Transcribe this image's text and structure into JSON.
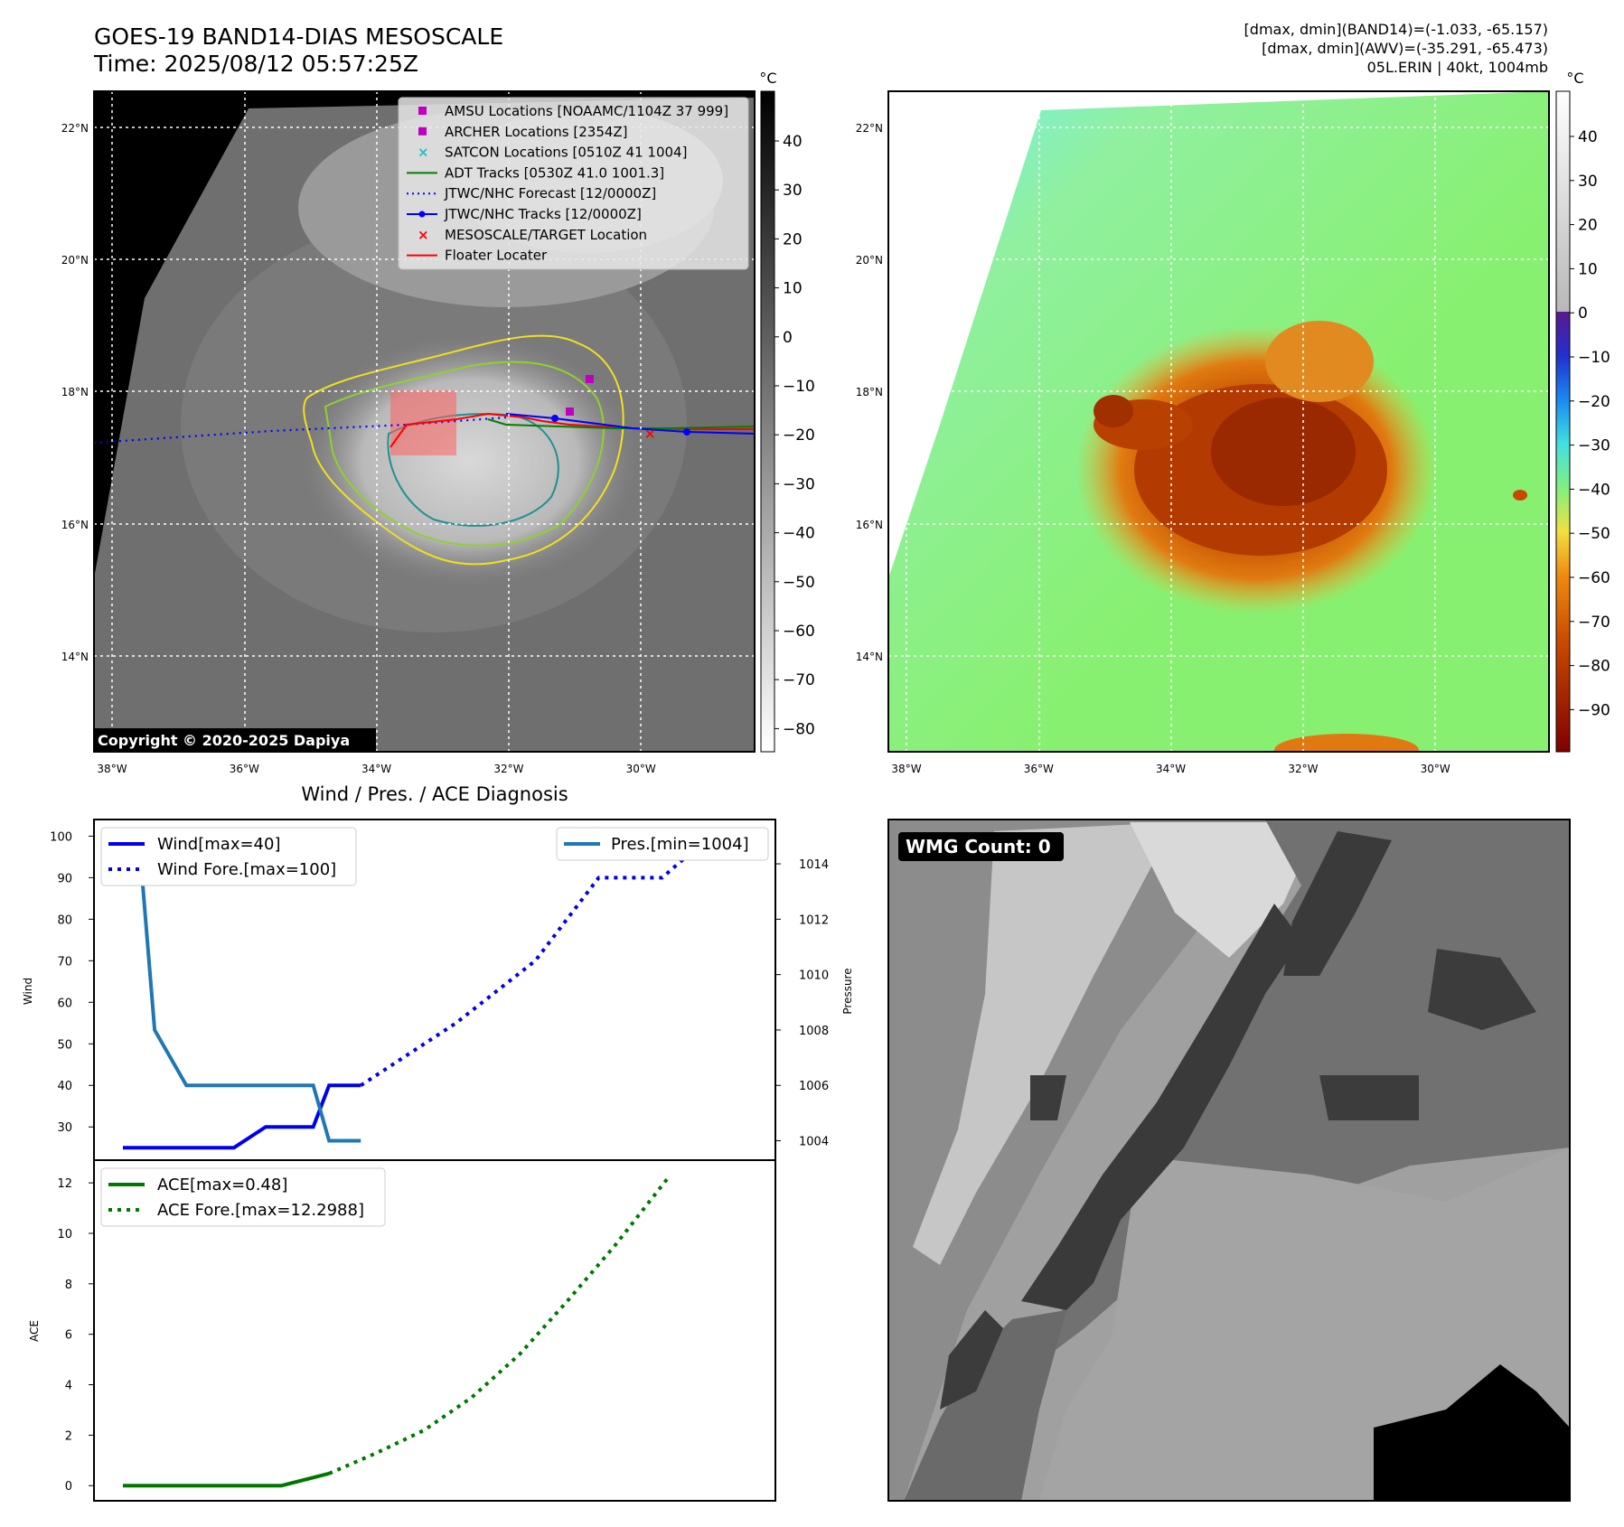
{
  "header": {
    "title_line1": "GOES-19 BAND14-DIAS MESOSCALE",
    "title_line2": "Time: 2025/08/12 05:57:25Z",
    "meta_line1": "[dmax, dmin](BAND14)=(-1.033, -65.157)",
    "meta_line2": "[dmax, dmin](AWV)=(-35.291, -65.473)",
    "meta_line3": "05L.ERIN | 40kt, 1004mb"
  },
  "map_axes": {
    "lat_ticks": [
      "22°N",
      "20°N",
      "18°N",
      "16°N",
      "14°N"
    ],
    "lon_ticks": [
      "38°W",
      "36°W",
      "34°W",
      "32°W",
      "30°W"
    ],
    "colorbar_unit": "°C"
  },
  "ir_panel": {
    "copyright": "Copyright © 2020-2025 Dapiya",
    "colorbar_ticks": [
      "40",
      "30",
      "20",
      "10",
      "0",
      "−10",
      "−20",
      "−30",
      "−40",
      "−50",
      "−60",
      "−70",
      "−80"
    ],
    "legend": [
      {
        "label": "AMSU Locations [NOAAMC/1104Z 37 999]",
        "marker": "square",
        "color": "#c000c0"
      },
      {
        "label": "ARCHER Locations [2354Z]",
        "marker": "square",
        "color": "#c000c0"
      },
      {
        "label": "SATCON Locations [0510Z 41 1004]",
        "marker": "x",
        "color": "#20c0c0"
      },
      {
        "label": "ADT Tracks [0530Z 41.0 1001.3]",
        "marker": "line",
        "color": "#008000"
      },
      {
        "label": "JTWC/NHC Forecast [12/0000Z]",
        "marker": "dotted",
        "color": "#0000ff"
      },
      {
        "label": "JTWC/NHC Tracks [12/0000Z]",
        "marker": "line-dot",
        "color": "#0000ff"
      },
      {
        "label": "MESOSCALE/TARGET Location",
        "marker": "x",
        "color": "#ff0000"
      },
      {
        "label": "Floater Locater",
        "marker": "line",
        "color": "#ff0000"
      }
    ]
  },
  "awv_panel": {
    "colorbar_ticks": [
      "40",
      "30",
      "20",
      "10",
      "0",
      "−10",
      "−20",
      "−30",
      "−40",
      "−50",
      "−60",
      "−70",
      "−80",
      "−90"
    ]
  },
  "wmg_panel": {
    "badge": "WMG Count: 0"
  },
  "chart_data": [
    {
      "type": "line",
      "title": "Wind / Pres. / ACE Diagnosis",
      "ylabel": "Wind",
      "y2label": "Pressure",
      "ylim": [
        22,
        104
      ],
      "y2lim": [
        1003.3,
        1015.6
      ],
      "yticks": [
        "30",
        "40",
        "50",
        "60",
        "70",
        "80",
        "90",
        "100"
      ],
      "y2ticks": [
        "1004",
        "1006",
        "1008",
        "1010",
        "1012",
        "1014"
      ],
      "series": [
        {
          "name": "Wind[max=40]",
          "color": "#0000ee",
          "style": "solid",
          "x": [
            0,
            6,
            7,
            9,
            10,
            12,
            13,
            15
          ],
          "y": [
            25,
            25,
            25,
            30,
            30,
            30,
            40,
            40
          ]
        },
        {
          "name": "Wind Fore.[max=100]",
          "color": "#0000ee",
          "style": "dotted",
          "x": [
            15,
            21,
            26,
            30,
            34,
            37
          ],
          "y": [
            40,
            55,
            70,
            90,
            90,
            100
          ]
        },
        {
          "name": "Pres.[min=1004]",
          "color": "#1f77b4",
          "style": "solid",
          "axis": "right",
          "x": [
            0,
            1,
            2,
            4,
            7,
            11,
            12,
            13,
            15
          ],
          "y": [
            1015,
            1015,
            1008,
            1006,
            1006,
            1006,
            1006,
            1004,
            1004
          ]
        }
      ],
      "legend": [
        "Wind[max=40]",
        "Wind Fore.[max=100]",
        "Pres.[min=1004]"
      ]
    },
    {
      "type": "line",
      "ylabel": "ACE",
      "ylim": [
        -0.6,
        12.9
      ],
      "yticks": [
        "0",
        "2",
        "4",
        "6",
        "8",
        "10",
        "12"
      ],
      "series": [
        {
          "name": "ACE[max=0.48]",
          "color": "#007700",
          "style": "solid",
          "x": [
            0,
            10,
            13
          ],
          "y": [
            0,
            0,
            0.48
          ]
        },
        {
          "name": "ACE Fore.[max=12.2988]",
          "color": "#007700",
          "style": "dotted",
          "x": [
            13,
            16,
            19,
            22,
            25,
            28,
            31,
            34.5
          ],
          "y": [
            0.48,
            1.3,
            2.2,
            3.5,
            5.2,
            7.3,
            9.5,
            12.3
          ]
        }
      ],
      "legend": [
        "ACE[max=0.48]",
        "ACE Fore.[max=12.2988]"
      ]
    }
  ]
}
